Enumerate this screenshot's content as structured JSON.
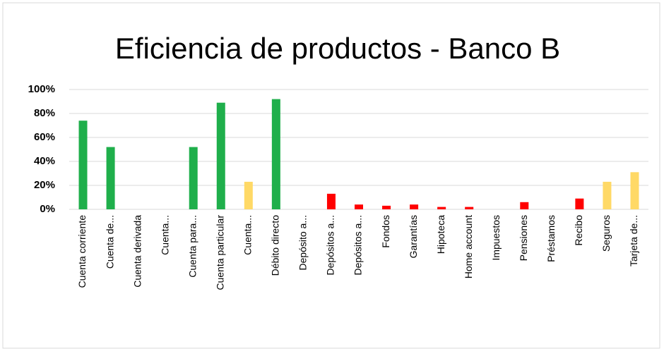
{
  "chart_data": {
    "type": "bar",
    "title": "Eficiencia de productos - Banco B",
    "categories": [
      "Cuenta corriente",
      "Cuenta de...",
      "Cuenta derivada",
      "Cuenta...",
      "Cuenta para...",
      "Cuenta particular",
      "Cuenta...",
      "Débito directo",
      "Depósito a...",
      "Depósitos a...",
      "Depósitos a...",
      "Fondos",
      "Garantías",
      "Hipoteca",
      "Home account",
      "Impuestos",
      "Pensiones",
      "Préstamos",
      "Recibo",
      "Seguros",
      "Tarjeta de..."
    ],
    "values": [
      74,
      52,
      0,
      0,
      52,
      89,
      23,
      92,
      0,
      13,
      4,
      3,
      4,
      2,
      2,
      0,
      6,
      0,
      9,
      23,
      31
    ],
    "colors": [
      "#1faf4b",
      "#1faf4b",
      "#1faf4b",
      "#1faf4b",
      "#1faf4b",
      "#1faf4b",
      "#ffd966",
      "#1faf4b",
      "#ff0000",
      "#ff0000",
      "#ff0000",
      "#ff0000",
      "#ff0000",
      "#ff0000",
      "#ff0000",
      "#ff0000",
      "#ff0000",
      "#ff0000",
      "#ff0000",
      "#ffd966",
      "#ffd966"
    ],
    "ylim": [
      0,
      100
    ],
    "yticks": [
      {
        "value": 0,
        "label": "0%"
      },
      {
        "value": 20,
        "label": "20%"
      },
      {
        "value": 40,
        "label": "40%"
      },
      {
        "value": 60,
        "label": "60%"
      },
      {
        "value": 80,
        "label": "80%"
      },
      {
        "value": 100,
        "label": "100%"
      }
    ],
    "grid": true
  }
}
